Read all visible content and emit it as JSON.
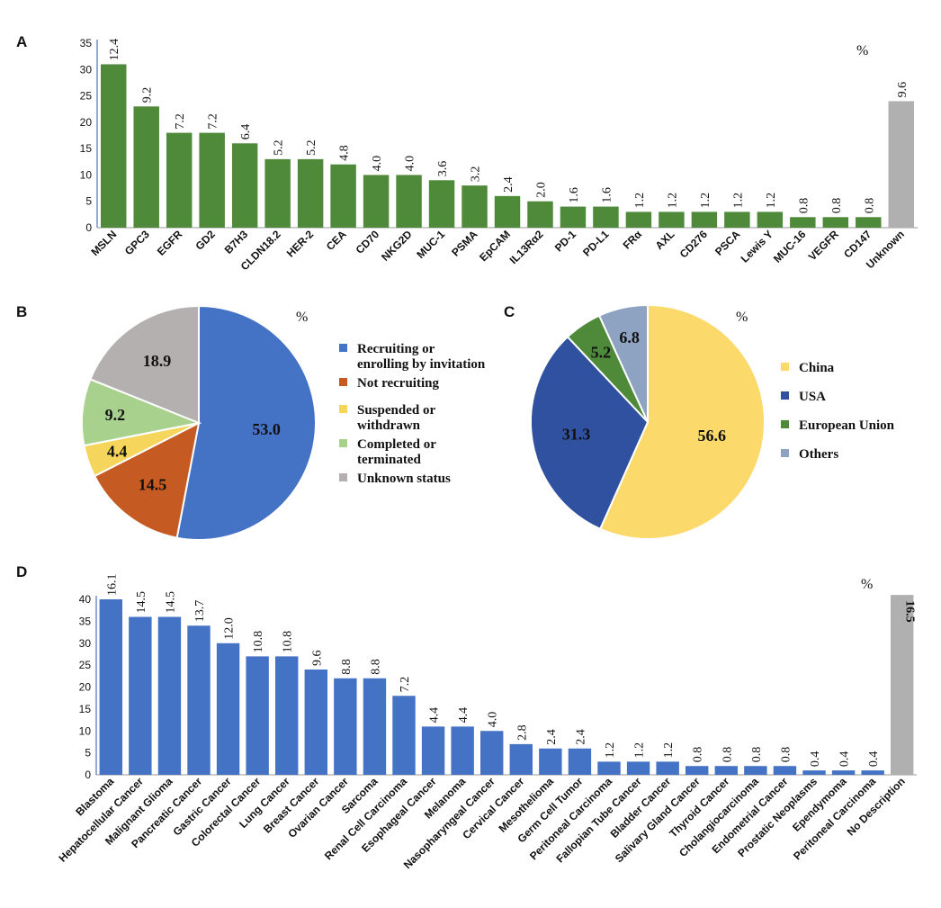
{
  "chart_data": [
    {
      "type": "bar",
      "panel": "A",
      "unit": "%",
      "ylim": [
        0,
        35
      ],
      "yticks": [
        0,
        5,
        10,
        15,
        20,
        25,
        30,
        35
      ],
      "categories": [
        "MSLN",
        "GPC3",
        "EGFR",
        "GD2",
        "B7H3",
        "CLDN18.2",
        "HER-2",
        "CEA",
        "CD70",
        "NKG2D",
        "MUC-1",
        "PSMA",
        "EpCAM",
        "IL13Rα2",
        "PD-1",
        "PD-L1",
        "FRα",
        "AXL",
        "CD276",
        "PSCA",
        "Lewis Y",
        "MUC-16",
        "VEGFR",
        "CD147",
        "Unknown"
      ],
      "values": [
        31,
        23,
        18,
        18,
        16,
        13,
        13,
        12,
        10,
        10,
        9,
        8,
        6,
        5,
        4,
        4,
        3,
        3,
        3,
        3,
        3,
        2,
        2,
        2,
        24
      ],
      "labels": [
        "12.4",
        "9.2",
        "7.2",
        "7.2",
        "6.4",
        "5.2",
        "5.2",
        "4.8",
        "4.0",
        "4.0",
        "3.6",
        "3.2",
        "2.4",
        "2.0",
        "1.6",
        "1.6",
        "1.2",
        "1.2",
        "1.2",
        "1.2",
        "1.2",
        "0.8",
        "0.8",
        "0.8",
        "9.6"
      ],
      "colors": {
        "main": "#4e8a3a",
        "unknown": "#b0b0b0"
      }
    },
    {
      "type": "pie",
      "panel": "B",
      "unit": "%",
      "slices": [
        {
          "name": "Recruiting or enrolling by invitation",
          "value": 53.0,
          "label": "53.0",
          "color": "#4472c4"
        },
        {
          "name": "Not recruiting",
          "value": 14.5,
          "label": "14.5",
          "color": "#c55a22"
        },
        {
          "name": "Suspended or withdrawn",
          "value": 4.4,
          "label": "4.4",
          "color": "#f6d55c"
        },
        {
          "name": "Completed or terminated",
          "value": 9.2,
          "label": "9.2",
          "color": "#a9d18e"
        },
        {
          "name": "Unknown status",
          "value": 18.9,
          "label": "18.9",
          "color": "#b4b0b0"
        }
      ],
      "legend": [
        [
          "Recruiting or",
          "enrolling by invitation"
        ],
        [
          "Not recruiting"
        ],
        [
          "Suspended or",
          "withdrawn"
        ],
        [
          "Completed or",
          "terminated"
        ],
        [
          "Unknown status"
        ]
      ]
    },
    {
      "type": "pie",
      "panel": "C",
      "unit": "%",
      "slices": [
        {
          "name": "China",
          "value": 56.6,
          "label": "56.6",
          "color": "#fbd96a"
        },
        {
          "name": "USA",
          "value": 31.3,
          "label": "31.3",
          "color": "#2f51a0"
        },
        {
          "name": "European Union",
          "value": 5.2,
          "label": "5.2",
          "color": "#4e8a3a"
        },
        {
          "name": "Others",
          "value": 6.8,
          "label": "6.8",
          "color": "#8ea2c2"
        }
      ],
      "legend": [
        [
          "China"
        ],
        [
          "USA"
        ],
        [
          "European Union"
        ],
        [
          "Others"
        ]
      ]
    },
    {
      "type": "bar",
      "panel": "D",
      "unit": "%",
      "ylim": [
        0,
        40
      ],
      "yticks": [
        0,
        5,
        10,
        15,
        20,
        25,
        30,
        35,
        40
      ],
      "categories": [
        "Blastoma",
        "Hepatocellular Cancer",
        "Malignant Glioma",
        "Pancreatic Cancer",
        "Gastric Cancer",
        "Colorectal Cancer",
        "Lung Cancer",
        "Breast Cancer",
        "Ovarian Cancer",
        "Sarcoma",
        "Renal Cell Carcinoma",
        "Esophageal Cancer",
        "Melanoma",
        "Nasopharyngeal Cancer",
        "Cervical Cancer",
        "Mesothelioma",
        "Germ Cell Tumor",
        "Peritoneal Carcinoma",
        "Fallopian Tube Cancer",
        "Bladder Cancer",
        "Salivary Gland Cancer",
        "Thyroid Cancer",
        "Cholangiocarcinoma",
        "Endometrial Cancer",
        "Prostatic Neoplasms",
        "Ependymoma",
        "Peritoneal Carcinoma",
        "No Description"
      ],
      "values": [
        40,
        36,
        36,
        34,
        30,
        27,
        27,
        24,
        22,
        22,
        18,
        11,
        11,
        10,
        7,
        6,
        6,
        3,
        3,
        3,
        2,
        2,
        2,
        2,
        1,
        1,
        1,
        41
      ],
      "labels": [
        "16.1",
        "14.5",
        "14.5",
        "13.7",
        "12.0",
        "10.8",
        "10.8",
        "9.6",
        "8.8",
        "8.8",
        "7.2",
        "4.4",
        "4.4",
        "4.0",
        "2.8",
        "2.4",
        "2.4",
        "1.2",
        "1.2",
        "1.2",
        "0.8",
        "0.8",
        "0.8",
        "0.8",
        "0.4",
        "0.4",
        "0.4",
        "16.5"
      ],
      "colors": {
        "main": "#4472c4",
        "unknown": "#b0b0b0"
      }
    }
  ],
  "panels": {
    "A": "A",
    "B": "B",
    "C": "C",
    "D": "D"
  }
}
